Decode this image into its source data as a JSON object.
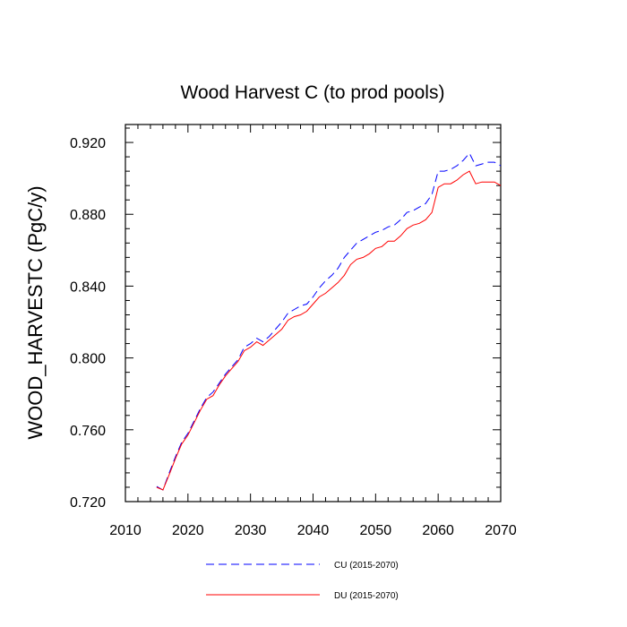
{
  "chart_data": {
    "type": "line",
    "title": "Wood Harvest C (to prod pools)",
    "xlabel": "",
    "ylabel": "WOOD_HARVESTC  (PgC/y)",
    "xlim": [
      2010,
      2070
    ],
    "ylim": [
      0.72,
      0.93
    ],
    "x_ticks": [
      2010,
      2020,
      2030,
      2040,
      2050,
      2060,
      2070
    ],
    "x_tick_labels": [
      "2010",
      "2020",
      "2030",
      "2040",
      "2050",
      "2060",
      "2070"
    ],
    "y_ticks": [
      0.72,
      0.76,
      0.8,
      0.84,
      0.88,
      0.92
    ],
    "y_tick_labels": [
      "0.720",
      "0.760",
      "0.800",
      "0.840",
      "0.880",
      "0.920"
    ],
    "grid": false,
    "legend_position": "bottom",
    "x": [
      2015,
      2016,
      2017,
      2018,
      2019,
      2020,
      2021,
      2022,
      2023,
      2024,
      2025,
      2026,
      2027,
      2028,
      2029,
      2030,
      2031,
      2032,
      2033,
      2034,
      2035,
      2036,
      2037,
      2038,
      2039,
      2040,
      2041,
      2042,
      2043,
      2044,
      2045,
      2046,
      2047,
      2048,
      2049,
      2050,
      2051,
      2052,
      2053,
      2054,
      2055,
      2056,
      2057,
      2058,
      2059,
      2060,
      2061,
      2062,
      2063,
      2064,
      2065,
      2066,
      2067,
      2068,
      2069,
      2070
    ],
    "series": [
      {
        "name": "CU (2015-2070)",
        "color": "#0000ff",
        "dash": "dashed",
        "values": [
          0.7285,
          0.7265,
          0.736,
          0.745,
          0.753,
          0.758,
          0.765,
          0.772,
          0.778,
          0.781,
          0.786,
          0.791,
          0.795,
          0.799,
          0.806,
          0.808,
          0.811,
          0.809,
          0.812,
          0.816,
          0.82,
          0.825,
          0.827,
          0.829,
          0.83,
          0.834,
          0.839,
          0.843,
          0.846,
          0.85,
          0.856,
          0.86,
          0.864,
          0.866,
          0.868,
          0.87,
          0.871,
          0.873,
          0.874,
          0.877,
          0.881,
          0.882,
          0.884,
          0.886,
          0.891,
          0.904,
          0.904,
          0.905,
          0.907,
          0.91,
          0.914,
          0.907,
          0.908,
          0.909,
          0.909,
          0.907
        ]
      },
      {
        "name": "DU (2015-2070)",
        "color": "#ff0000",
        "dash": "solid",
        "values": [
          0.728,
          0.7265,
          0.735,
          0.744,
          0.752,
          0.757,
          0.764,
          0.771,
          0.777,
          0.779,
          0.785,
          0.79,
          0.794,
          0.798,
          0.804,
          0.806,
          0.809,
          0.807,
          0.81,
          0.813,
          0.816,
          0.821,
          0.823,
          0.824,
          0.826,
          0.83,
          0.834,
          0.836,
          0.839,
          0.842,
          0.846,
          0.852,
          0.855,
          0.856,
          0.858,
          0.861,
          0.862,
          0.865,
          0.865,
          0.868,
          0.872,
          0.874,
          0.875,
          0.877,
          0.881,
          0.895,
          0.897,
          0.897,
          0.899,
          0.902,
          0.904,
          0.897,
          0.898,
          0.898,
          0.898,
          0.896
        ]
      }
    ]
  }
}
